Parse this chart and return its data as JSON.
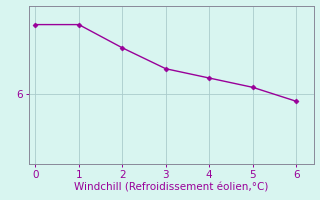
{
  "x": [
    0,
    1,
    2,
    3,
    4,
    5,
    6
  ],
  "y": [
    7.5,
    7.5,
    7.0,
    6.55,
    6.35,
    6.15,
    5.85
  ],
  "line_color": "#990099",
  "marker": "D",
  "marker_size": 2.5,
  "line_width": 1.0,
  "background_color": "#d8f5f0",
  "grid_color": "#aacccc",
  "axis_color": "#888899",
  "xlabel": "Windchill (Refroidissement éolien,°C)",
  "xlabel_color": "#990099",
  "ytick_values": [
    6
  ],
  "ytick_labels": [
    "6"
  ],
  "xtick_values": [
    0,
    1,
    2,
    3,
    4,
    5,
    6
  ],
  "xlim": [
    -0.15,
    6.4
  ],
  "ylim": [
    4.5,
    7.9
  ],
  "xlabel_fontsize": 7.5,
  "tick_fontsize": 7.5,
  "tick_color": "#990099"
}
